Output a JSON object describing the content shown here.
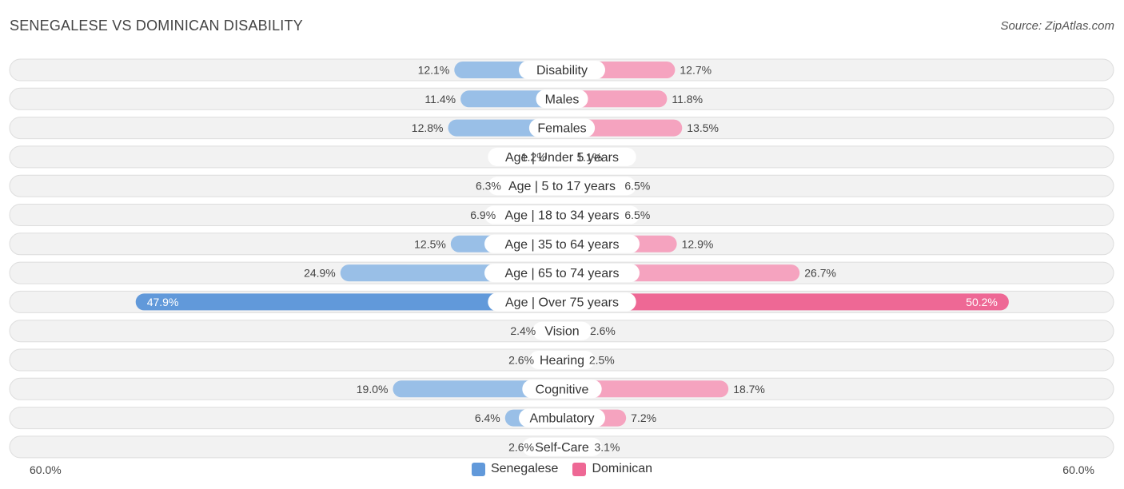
{
  "title": "SENEGALESE VS DOMINICAN DISABILITY",
  "source": "Source: ZipAtlas.com",
  "colors": {
    "senegalese": "#99bfe7",
    "senegalese_strong": "#6199da",
    "dominican": "#f5a3bf",
    "dominican_strong": "#ee6895",
    "row_bg": "#f2f2f2",
    "row_border": "#dddddd"
  },
  "legend": {
    "senegalese": "Senegalese",
    "dominican": "Dominican"
  },
  "axis": {
    "left_label": "60.0%",
    "right_label": "60.0%"
  },
  "chart_data": {
    "type": "bar",
    "orientation": "horizontal-diverging",
    "xlim": [
      0,
      60
    ],
    "categories": [
      "Disability",
      "Males",
      "Females",
      "Age | Under 5 years",
      "Age | 5 to 17 years",
      "Age | 18 to 34 years",
      "Age | 35 to 64 years",
      "Age | 65 to 74 years",
      "Age | Over 75 years",
      "Vision",
      "Hearing",
      "Cognitive",
      "Ambulatory",
      "Self-Care"
    ],
    "series": [
      {
        "name": "Senegalese",
        "values": [
          12.1,
          11.4,
          12.8,
          1.2,
          6.3,
          6.9,
          12.5,
          24.9,
          47.9,
          2.4,
          2.6,
          19.0,
          6.4,
          2.6
        ],
        "labels": [
          "12.1%",
          "11.4%",
          "12.8%",
          "1.2%",
          "6.3%",
          "6.9%",
          "12.5%",
          "24.9%",
          "47.9%",
          "2.4%",
          "2.6%",
          "19.0%",
          "6.4%",
          "2.6%"
        ]
      },
      {
        "name": "Dominican",
        "values": [
          12.7,
          11.8,
          13.5,
          1.1,
          6.5,
          6.5,
          12.9,
          26.7,
          50.2,
          2.6,
          2.5,
          18.7,
          7.2,
          3.1
        ],
        "labels": [
          "12.7%",
          "11.8%",
          "13.5%",
          "1.1%",
          "6.5%",
          "6.5%",
          "12.9%",
          "26.7%",
          "50.2%",
          "2.6%",
          "2.5%",
          "18.7%",
          "7.2%",
          "3.1%"
        ]
      }
    ],
    "highlight_index": 8,
    "legend_position": "bottom-center",
    "grid": false
  }
}
